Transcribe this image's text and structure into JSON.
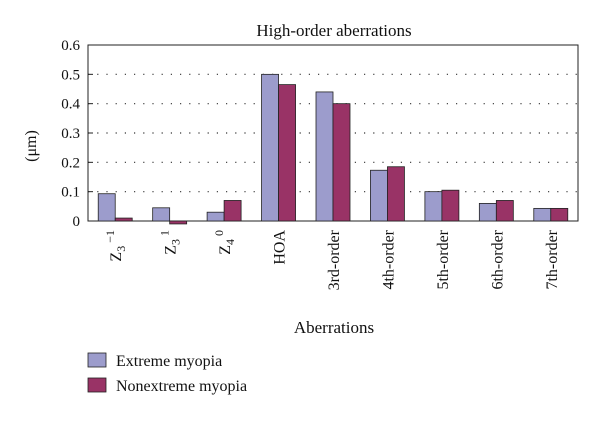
{
  "chart_data": {
    "type": "bar",
    "title": "High-order aberrations",
    "xlabel": "Aberrations",
    "ylabel": "(μm)",
    "ylim": [
      0,
      0.6
    ],
    "yticks": [
      0,
      0.1,
      0.2,
      0.3,
      0.4,
      0.5,
      0.6
    ],
    "ytick_labels": [
      "0",
      "0.1",
      "0.2",
      "0.3",
      "0.4",
      "0.5",
      "0.6"
    ],
    "grid": true,
    "legend_position": "bottom-left",
    "categories": [
      {
        "base": "Z",
        "sub": "3",
        "sup": "−1"
      },
      {
        "base": "Z",
        "sub": "3",
        "sup": "1"
      },
      {
        "base": "Z",
        "sub": "4",
        "sup": "0"
      },
      {
        "base": "HOA"
      },
      {
        "base": "3rd-order"
      },
      {
        "base": "4th-order"
      },
      {
        "base": "5th-order"
      },
      {
        "base": "6th-order"
      },
      {
        "base": "7th-order"
      }
    ],
    "series": [
      {
        "name": "Extreme myopia",
        "color": "#9c9ccc",
        "values": [
          0.093,
          0.045,
          0.03,
          0.5,
          0.44,
          0.173,
          0.1,
          0.06,
          0.043
        ]
      },
      {
        "name": "Nonextreme myopia",
        "color": "#993366",
        "values": [
          0.01,
          -0.01,
          0.07,
          0.465,
          0.4,
          0.185,
          0.105,
          0.07,
          0.043
        ]
      }
    ]
  }
}
